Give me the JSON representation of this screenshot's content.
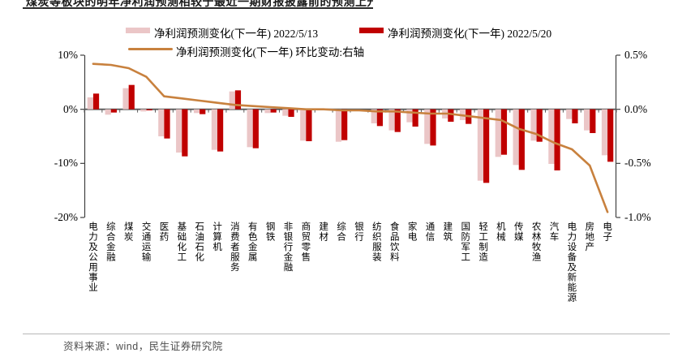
{
  "title": "煤炭等板块的明年净利润预测相较于最近一期财报披露前的预测上升",
  "source": "资料来源：wind，民生证券研究院",
  "colors": {
    "bar_prev": "#ebc6c7",
    "bar_curr": "#c00000",
    "line": "#c8813e",
    "axis": "#404040",
    "zero_line": "#595959"
  },
  "legend": [
    {
      "label": "净利润预测变化(下一年) 2022/5/13",
      "type": "bar",
      "color": "#ebc6c7"
    },
    {
      "label": "净利润预测变化(下一年) 2022/5/20",
      "type": "bar",
      "color": "#c00000"
    },
    {
      "label": "净利润预测变化(下一年) 环比变动:右轴",
      "type": "line",
      "color": "#c8813e"
    }
  ],
  "chart_data": {
    "type": "bar",
    "subtype": "grouped bars + line on secondary axis",
    "categories": [
      "电力及公用事业",
      "综合金融",
      "煤炭",
      "交通运输",
      "医药",
      "基础化工",
      "石油石化",
      "计算机",
      "消费者服务",
      "有色金属",
      "钢铁",
      "非银行金融",
      "商贸零售",
      "建材",
      "综合",
      "银行",
      "纺织服装",
      "食品饮料",
      "家电",
      "通信",
      "建筑",
      "国防军工",
      "轻工制造",
      "机械",
      "传媒",
      "农林牧渔",
      "汽车",
      "电力设备及新能源",
      "房地产",
      "电子"
    ],
    "series": [
      {
        "name": "净利润预测变化(下一年) 2022/5/13",
        "type": "bar",
        "axis": "left",
        "color": "#ebc6c7",
        "values": [
          2.2,
          -1.0,
          3.9,
          -0.4,
          -5.0,
          -8.0,
          -0.7,
          -7.5,
          3.3,
          -7.0,
          -0.7,
          -1.2,
          -5.8,
          0,
          -6.0,
          0,
          -2.6,
          -3.9,
          -2.4,
          -6.4,
          -1.7,
          -2.0,
          -13.2,
          -8.8,
          -10.3,
          -5.8,
          -10.1,
          -1.8,
          -3.9,
          -8.5
        ]
      },
      {
        "name": "净利润预测变化(下一年) 2022/5/20",
        "type": "bar",
        "axis": "left",
        "color": "#c00000",
        "values": [
          2.9,
          -0.6,
          4.5,
          -0.2,
          -5.4,
          -8.7,
          -0.9,
          -7.8,
          3.5,
          -7.2,
          -0.6,
          -1.4,
          -5.9,
          0,
          -5.7,
          0,
          -3.1,
          -4.2,
          -3.2,
          -6.7,
          -2.3,
          -2.7,
          -13.6,
          -8.4,
          -11.2,
          -6.0,
          -11.3,
          -2.6,
          -4.4,
          -9.7
        ]
      },
      {
        "name": "净利润预测变化(下一年) 环比变动:右轴",
        "type": "line",
        "axis": "right",
        "color": "#c8813e",
        "values": [
          0.42,
          0.41,
          0.38,
          0.3,
          0.12,
          0.1,
          0.08,
          0.06,
          0.04,
          0.03,
          0.02,
          0.01,
          0.0,
          0.0,
          -0.01,
          -0.01,
          -0.02,
          -0.02,
          -0.03,
          -0.04,
          -0.04,
          -0.06,
          -0.08,
          -0.1,
          -0.18,
          -0.23,
          -0.31,
          -0.37,
          -0.52,
          -0.95
        ]
      }
    ],
    "left_axis": {
      "tick_labels": [
        "10%",
        "0%",
        "-10%",
        "-20%"
      ],
      "tick_values": [
        10,
        0,
        -10,
        -20
      ],
      "min": -20,
      "max": 10,
      "unit": "%"
    },
    "right_axis": {
      "tick_labels": [
        "0.5%",
        "0.0%",
        "-0.5%",
        "-1.0%"
      ],
      "tick_values": [
        0.5,
        0.0,
        -0.5,
        -1.0
      ],
      "min": -1.0,
      "max": 0.5,
      "unit": "%"
    },
    "grid": false,
    "legend_position": "top"
  }
}
